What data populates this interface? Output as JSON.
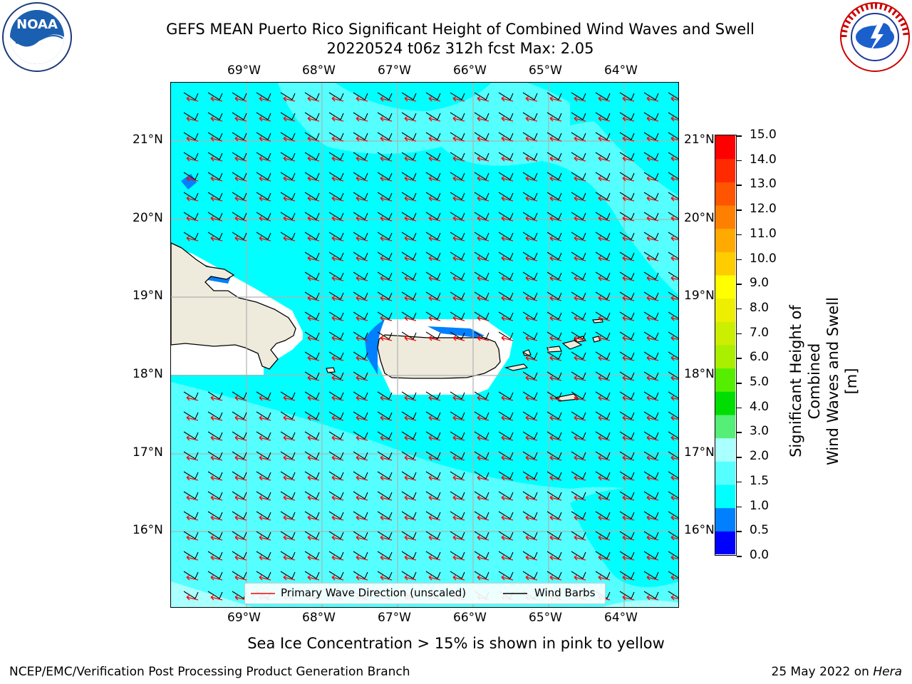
{
  "header": {
    "title_line1": "GEFS MEAN Puerto Rico Significant Height of Combined Wind Waves and Swell",
    "title_line2": "20220524 t06z 312h fcst   Max: 2.05"
  },
  "logos": {
    "noara_text": "NOAA",
    "noaa_ring_text": "NATIONAL OCEANIC AND ATMOSPHERIC ADMINISTRATION · U.S. DEPARTMENT OF COMMERCE",
    "nws_ring_text": "NATIONAL WEATHER SERVICE"
  },
  "axes": {
    "lon_ticks": [
      "69°W",
      "68°W",
      "67°W",
      "66°W",
      "65°W",
      "64°W"
    ],
    "lat_ticks": [
      "21°N",
      "20°N",
      "19°N",
      "18°N",
      "17°N",
      "16°N"
    ]
  },
  "legend": {
    "wave_label": "Primary Wave Direction (unscaled)",
    "barb_label": "Wind Barbs",
    "wave_color": "#ff0000",
    "barb_color": "#000000"
  },
  "colorbar": {
    "label_line1": "Significant Height of Combined",
    "label_line2": "Wind Waves and Swell [m]",
    "ticks": [
      "15.0",
      "14.0",
      "13.0",
      "12.0",
      "11.0",
      "10.0",
      "9.0",
      "8.0",
      "7.0",
      "6.0",
      "5.0",
      "4.0",
      "3.0",
      "2.0",
      "1.5",
      "1.0",
      "0.5",
      "0.0"
    ],
    "colors": [
      "#0000ff",
      "#0080ff",
      "#00ffff",
      "#55ffff",
      "#aaffff",
      "#55ee77",
      "#00dd00",
      "#55ee00",
      "#aaee00",
      "#ccee00",
      "#eeee00",
      "#ffff00",
      "#ffcc00",
      "#ffaa00",
      "#ff8000",
      "#ff5500",
      "#ff2a00",
      "#ff0000"
    ]
  },
  "map_colors": {
    "sea_main": "#00ffff",
    "sea_light": "#55ffff",
    "sea_lighter": "#aaffff",
    "sea_dark": "#0080ff",
    "land": "#efebdc",
    "grid": "#b0b0b0"
  },
  "notes": {
    "ice": "Sea Ice Concentration > 15% is shown in pink to yellow"
  },
  "footer": {
    "left": "NCEP/EMC/Verification Post Processing Product Generation Branch",
    "date": "25 May 2022 on ",
    "machine": "Hera"
  }
}
